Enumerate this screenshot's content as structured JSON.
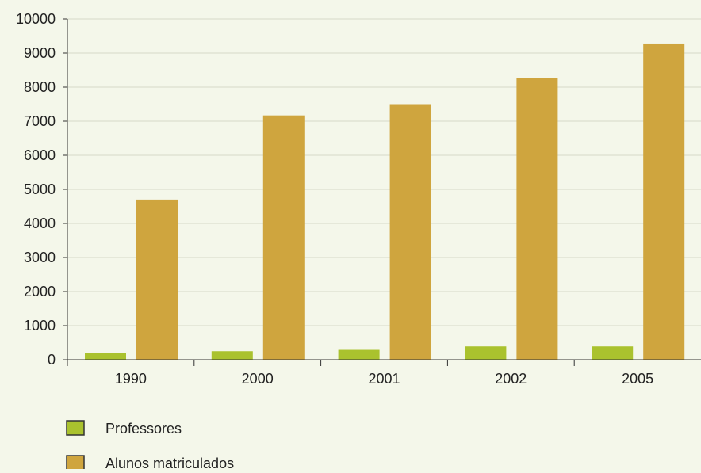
{
  "chart_data": {
    "type": "bar",
    "categories": [
      "1990",
      "2000",
      "2001",
      "2002",
      "2005"
    ],
    "series": [
      {
        "name": "Professores",
        "values": [
          200,
          250,
          290,
          390,
          390
        ],
        "color": "#aac22e"
      },
      {
        "name": "Alunos matriculados",
        "values": [
          4700,
          7170,
          7500,
          8270,
          9280
        ],
        "color": "#cfa53e"
      }
    ],
    "ylim": [
      0,
      10000
    ],
    "yticks": [
      0,
      1000,
      2000,
      3000,
      4000,
      5000,
      6000,
      7000,
      8000,
      9000,
      10000
    ],
    "grid": true,
    "legend_position": "bottom-left",
    "title": "",
    "xlabel": "",
    "ylabel": ""
  },
  "colors": {
    "background": "#f4f7ea",
    "grid": "#d6dac8",
    "axis": "#333333"
  }
}
